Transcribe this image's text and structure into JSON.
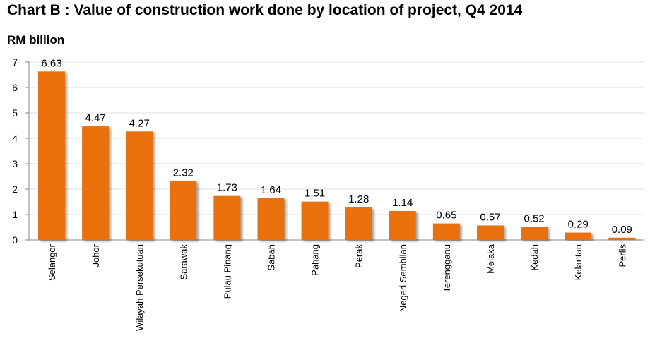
{
  "chart_data": {
    "type": "bar",
    "title": "Chart B : Value of construction work done by location of project, Q4 2014",
    "ylabel": "RM billion",
    "ylim": [
      0,
      7
    ],
    "yticks": [
      0,
      1,
      2,
      3,
      4,
      5,
      6,
      7
    ],
    "grid": true,
    "categories": [
      "Selangor",
      "Johor",
      "Wilayah Persekutuan",
      "Sarawak",
      "Pulau Pinang",
      "Sabah",
      "Pahang",
      "Perak",
      "Negeri Sembilan",
      "Terengganu",
      "Melaka",
      "Kedah",
      "Kelantan",
      "Perlis"
    ],
    "values": [
      6.63,
      4.47,
      4.27,
      2.32,
      1.73,
      1.64,
      1.51,
      1.28,
      1.14,
      0.65,
      0.57,
      0.52,
      0.29,
      0.09
    ],
    "value_labels": [
      "6.63",
      "4.47",
      "4.27",
      "2.32",
      "1.73",
      "1.64",
      "1.51",
      "1.28",
      "1.14",
      "0.65",
      "0.57",
      "0.52",
      "0.29",
      "0.09"
    ],
    "bar_color": "#e8700f",
    "grid_color": "#e0e0e0"
  }
}
